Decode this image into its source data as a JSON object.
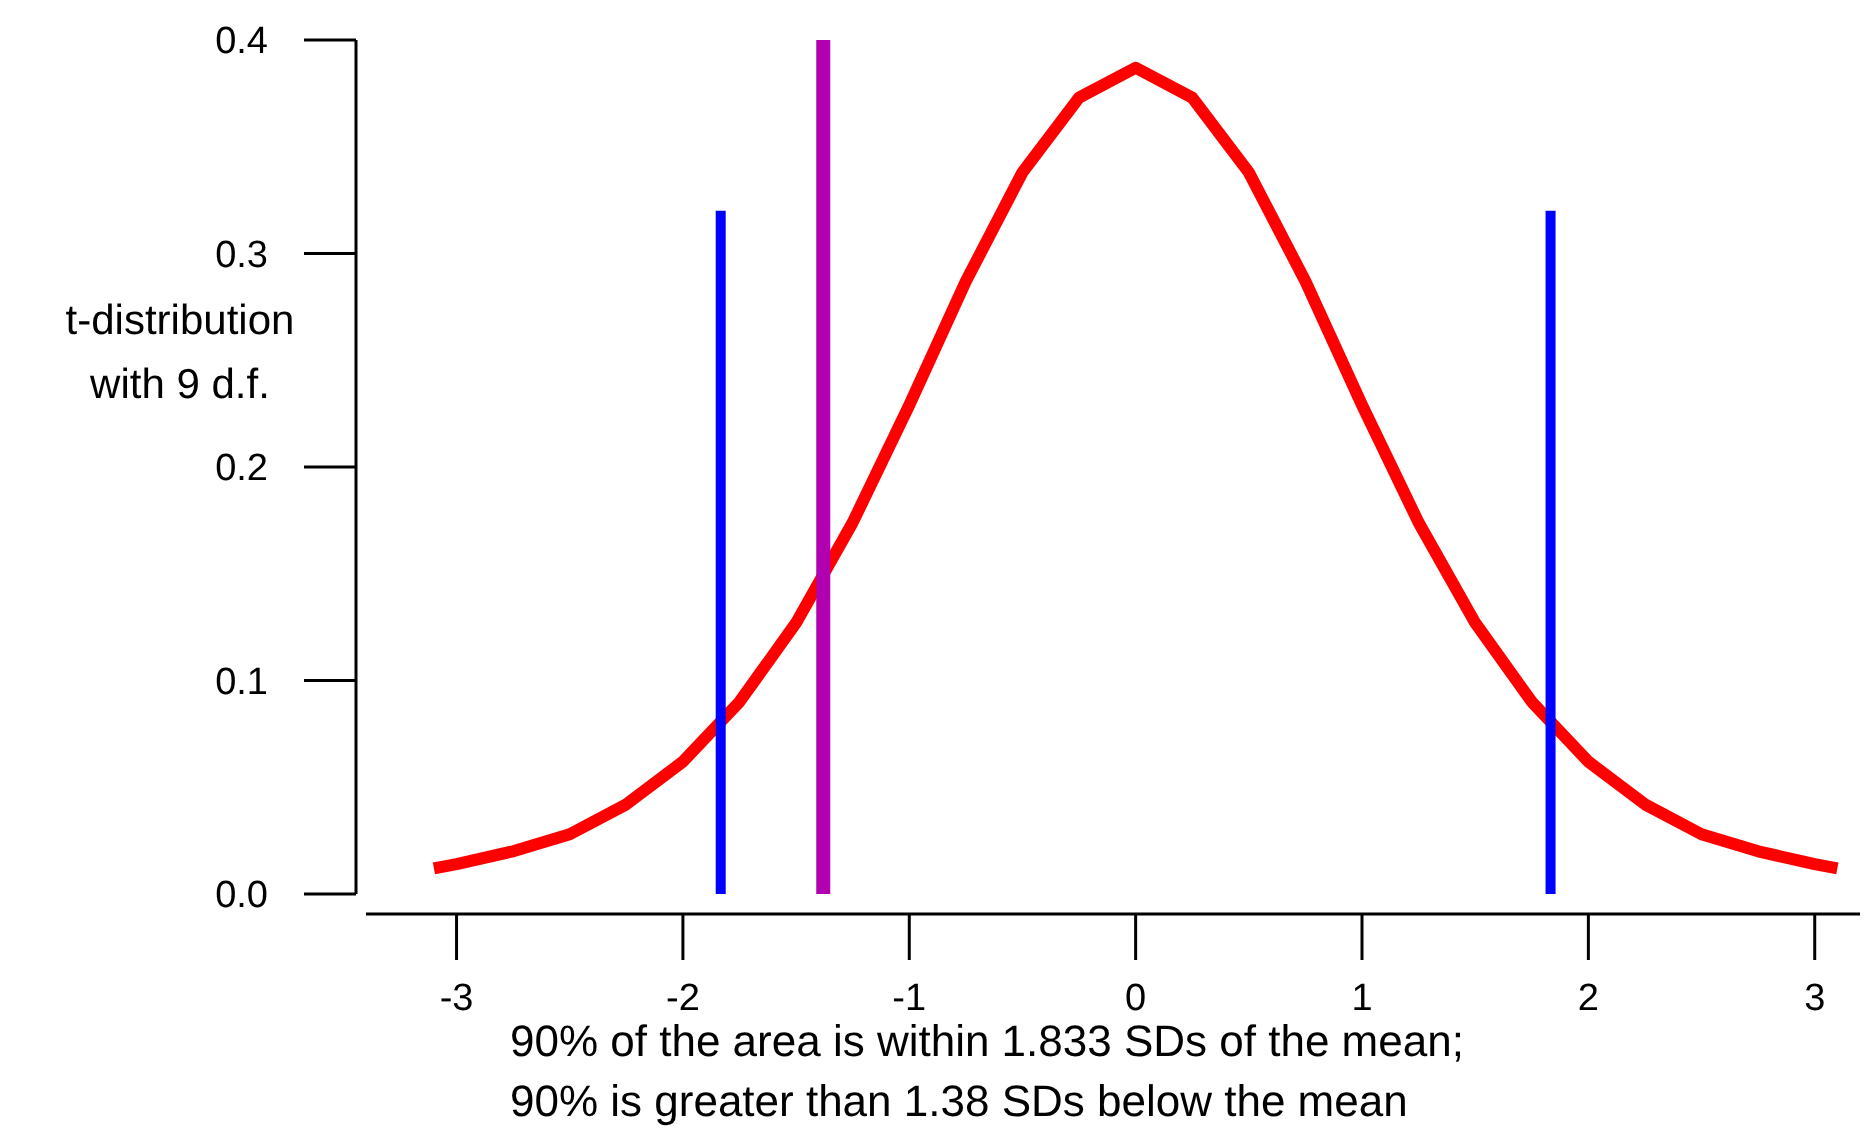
{
  "chart_data": {
    "type": "line",
    "ylabel": "t-distribution\nwith 9 d.f.",
    "annotations": [
      "90% of the area is within 1.833 SDs of the mean;",
      "90% is greater than 1.38 SDs below the mean"
    ],
    "xlim": [
      -3.4,
      3.2
    ],
    "xticks": [
      -3,
      -2,
      -1,
      0,
      1,
      2,
      3
    ],
    "ylim": [
      0,
      0.4
    ],
    "yticks": [
      {
        "value": 0,
        "label": "0.0"
      },
      0.1,
      0.2,
      0.3,
      0.4
    ],
    "grid": false,
    "marker": "none",
    "line_style": "solid",
    "series": [
      {
        "color": "#ff0000",
        "x": [
          -3.1,
          -3,
          -2.75,
          -2.5,
          -2.25,
          -2,
          -1.75,
          -1.5,
          -1.25,
          -1,
          -0.75,
          -0.5,
          -0.25,
          0,
          0.25,
          0.5,
          0.75,
          1,
          1.25,
          1.5,
          1.75,
          2,
          2.25,
          2.5,
          2.75,
          3,
          3.1
        ],
        "values": [
          0.012,
          0.014,
          0.02,
          0.028,
          0.042,
          0.062,
          0.09,
          0.127,
          0.174,
          0.229,
          0.287,
          0.338,
          0.373,
          0.387,
          0.373,
          0.338,
          0.287,
          0.229,
          0.174,
          0.127,
          0.09,
          0.062,
          0.042,
          0.028,
          0.02,
          0.014,
          0.012
        ]
      },
      {
        "color": "#0000ff",
        "x": [
          -1.833,
          -1.833
        ],
        "values": [
          0,
          0.32
        ]
      },
      {
        "color": "#0000ff",
        "x": [
          1.833,
          1.833
        ],
        "values": [
          0,
          0.32
        ]
      },
      {
        "color": "#b000b0",
        "x": [
          -1.38,
          -1.38
        ],
        "values": [
          0,
          0.4
        ]
      }
    ]
  }
}
